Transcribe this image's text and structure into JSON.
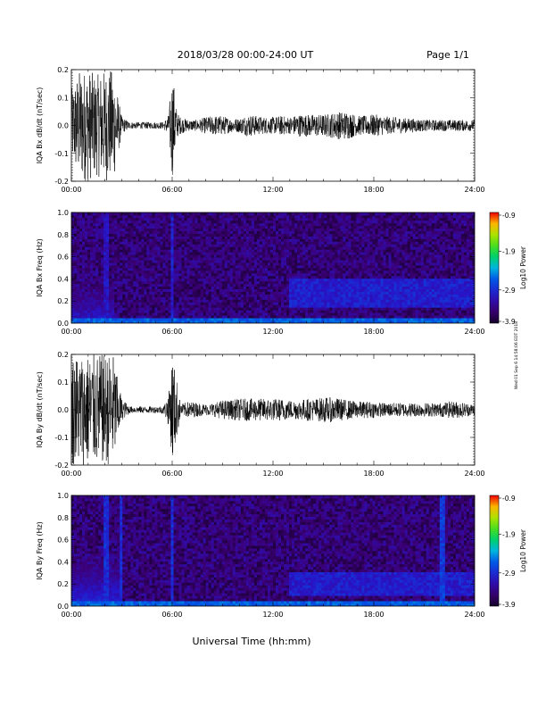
{
  "header": {
    "title": "2018/03/28   00:00-24:00 UT",
    "page": "Page 1/1"
  },
  "footer": {
    "xlabel": "Universal Time (hh:mm)"
  },
  "side_note": "Wed 01 Sep 6 14:58:06 EDT 2018",
  "chart_data": [
    {
      "type": "line",
      "panel": "bx-waveform",
      "ylabel": "IQA Bx dB/dt (nT/sec)",
      "xlim": [
        0,
        24
      ],
      "ylim": [
        -0.2,
        0.2
      ],
      "xticks": [
        "00:00",
        "06:00",
        "12:00",
        "18:00",
        "24:00"
      ],
      "yticks": [
        "-0.2",
        "-0.1",
        "0.0",
        "0.1",
        "0.2"
      ],
      "series": [
        {
          "x": [
            0,
            0.5,
            1,
            1.5,
            2,
            2.5,
            3,
            3.5,
            4,
            4.5,
            5,
            5.5,
            5.8,
            6,
            6.3,
            6.5,
            7,
            7.5,
            8,
            8.5,
            9,
            9.5,
            10,
            10.5,
            11,
            11.5,
            12,
            12.5,
            13,
            13.5,
            14,
            14.5,
            15,
            15.5,
            16,
            16.5,
            17,
            17.5,
            18,
            18.5,
            19,
            19.5,
            20,
            20.5,
            21,
            21.5,
            22,
            22.5,
            23,
            23.5,
            24
          ],
          "amplitude": [
            0.13,
            0.2,
            0.2,
            0.18,
            0.2,
            0.2,
            0.03,
            0.012,
            0.012,
            0.012,
            0.012,
            0.012,
            0.04,
            0.2,
            0.045,
            0.03,
            0.02,
            0.02,
            0.03,
            0.035,
            0.035,
            0.025,
            0.025,
            0.04,
            0.035,
            0.03,
            0.03,
            0.035,
            0.03,
            0.04,
            0.04,
            0.04,
            0.04,
            0.045,
            0.05,
            0.05,
            0.035,
            0.035,
            0.04,
            0.035,
            0.03,
            0.03,
            0.025,
            0.025,
            0.02,
            0.02,
            0.02,
            0.02,
            0.02,
            0.02,
            0.02
          ]
        }
      ]
    },
    {
      "type": "heatmap",
      "panel": "bx-spectrogram",
      "ylabel": "IQA Bx Freq (Hz)",
      "xlim": [
        0,
        24
      ],
      "ylim": [
        0,
        1.0
      ],
      "xticks": [
        "00:00",
        "06:00",
        "12:00",
        "18:00",
        "24:00"
      ],
      "yticks": [
        "0.0",
        "0.2",
        "0.4",
        "0.6",
        "0.8",
        "1.0"
      ],
      "colorbar": {
        "label": "Log10 Power",
        "ticks": [
          "-0.9",
          "-1.9",
          "-2.9",
          "-3.9"
        ],
        "range": [
          -3.9,
          -0.9
        ]
      },
      "features": [
        {
          "name": "low-frequency band",
          "t": [
            0,
            24
          ],
          "f": [
            0,
            0.05
          ],
          "level": -2.7
        },
        {
          "name": "broadband burst",
          "t": [
            0,
            2.5
          ],
          "f": [
            0,
            0.5
          ],
          "level": -3.1
        },
        {
          "name": "vertical line",
          "t": [
            2.1,
            2.1
          ],
          "f": [
            0,
            1.0
          ],
          "level": -3.2
        },
        {
          "name": "vertical line",
          "t": [
            6.0,
            6.0
          ],
          "f": [
            0,
            1.0
          ],
          "level": -3.1
        },
        {
          "name": "emission band",
          "t": [
            13,
            24
          ],
          "f": [
            0.15,
            0.4
          ],
          "level": -3.1
        }
      ]
    },
    {
      "type": "line",
      "panel": "by-waveform",
      "ylabel": "IQA By dB/dt (nT/sec)",
      "xlim": [
        0,
        24
      ],
      "ylim": [
        -0.2,
        0.2
      ],
      "xticks": [
        "00:00",
        "06:00",
        "12:00",
        "18:00",
        "24:00"
      ],
      "yticks": [
        "-0.2",
        "-0.1",
        "0.0",
        "0.1",
        "0.2"
      ],
      "series": [
        {
          "x": [
            0,
            0.5,
            1,
            1.5,
            2,
            2.5,
            3,
            3.5,
            4,
            4.5,
            5,
            5.5,
            5.8,
            6,
            6.3,
            6.5,
            7,
            7.5,
            8,
            8.5,
            9,
            9.5,
            10,
            10.5,
            11,
            11.5,
            12,
            12.5,
            13,
            13.5,
            14,
            14.5,
            15,
            15.5,
            16,
            16.5,
            17,
            17.5,
            18,
            18.5,
            19,
            19.5,
            20,
            20.5,
            21,
            21.5,
            22,
            22.5,
            23,
            23.5,
            24
          ],
          "amplitude": [
            0.2,
            0.2,
            0.2,
            0.2,
            0.2,
            0.2,
            0.04,
            0.012,
            0.012,
            0.012,
            0.012,
            0.015,
            0.06,
            0.2,
            0.1,
            0.02,
            0.03,
            0.025,
            0.02,
            0.025,
            0.035,
            0.035,
            0.04,
            0.04,
            0.04,
            0.04,
            0.04,
            0.04,
            0.035,
            0.035,
            0.04,
            0.04,
            0.045,
            0.045,
            0.04,
            0.035,
            0.03,
            0.03,
            0.03,
            0.025,
            0.025,
            0.025,
            0.025,
            0.025,
            0.025,
            0.025,
            0.025,
            0.03,
            0.03,
            0.025,
            0.02
          ]
        }
      ]
    },
    {
      "type": "heatmap",
      "panel": "by-spectrogram",
      "ylabel": "IQA By Freq (Hz)",
      "xlim": [
        0,
        24
      ],
      "ylim": [
        0,
        1.0
      ],
      "xticks": [
        "00:00",
        "06:00",
        "12:00",
        "18:00",
        "24:00"
      ],
      "yticks": [
        "0.0",
        "0.2",
        "0.4",
        "0.6",
        "0.8",
        "1.0"
      ],
      "colorbar": {
        "label": "Log10 Power",
        "ticks": [
          "-0.9",
          "-1.9",
          "-2.9",
          "-3.9"
        ],
        "range": [
          -3.9,
          -0.9
        ]
      },
      "features": [
        {
          "name": "low-frequency band",
          "t": [
            0,
            24
          ],
          "f": [
            0,
            0.05
          ],
          "level": -2.7
        },
        {
          "name": "broadband burst",
          "t": [
            0,
            3
          ],
          "f": [
            0,
            0.6
          ],
          "level": -3.0
        },
        {
          "name": "vertical line",
          "t": [
            2.1,
            2.1
          ],
          "f": [
            0,
            1.0
          ],
          "level": -3.0
        },
        {
          "name": "vertical line",
          "t": [
            3.0,
            3.0
          ],
          "f": [
            0,
            1.0
          ],
          "level": -3.0
        },
        {
          "name": "vertical line",
          "t": [
            6.0,
            6.0
          ],
          "f": [
            0,
            1.0
          ],
          "level": -3.0
        },
        {
          "name": "vertical line",
          "t": [
            22.1,
            22.1
          ],
          "f": [
            0,
            1.0
          ],
          "level": -2.9
        },
        {
          "name": "emission band",
          "t": [
            13,
            24
          ],
          "f": [
            0.1,
            0.3
          ],
          "level": -3.1
        }
      ]
    }
  ]
}
